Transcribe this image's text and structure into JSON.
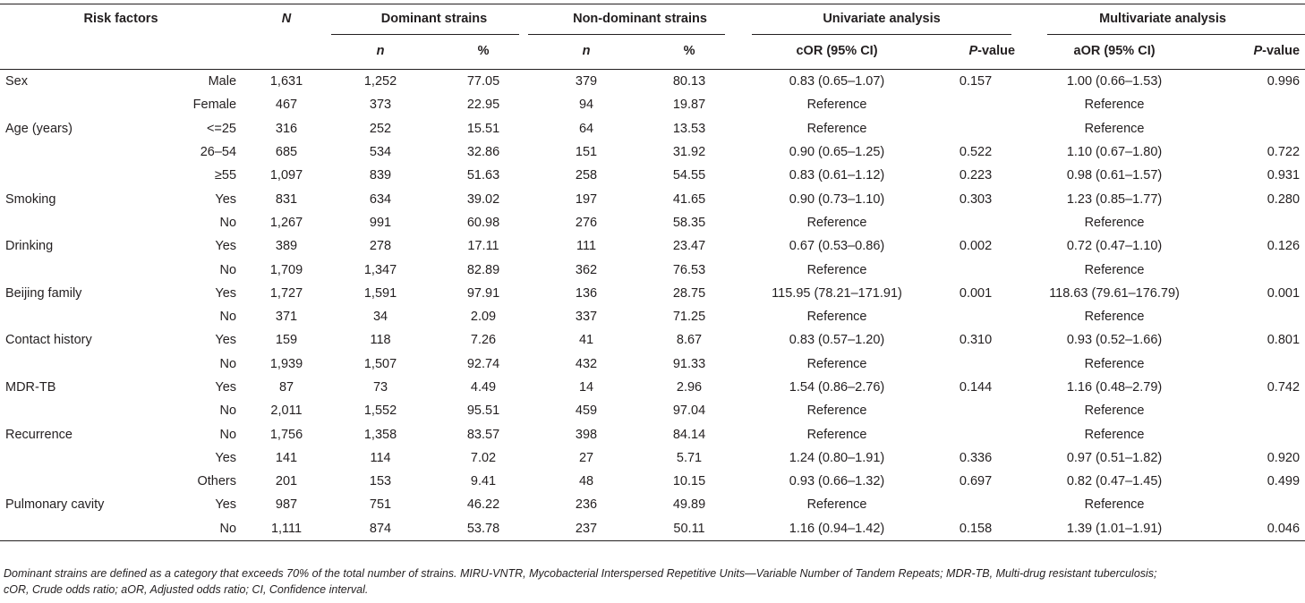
{
  "table": {
    "headers": {
      "risk_factors": "Risk factors",
      "N": "N",
      "dominant_strains": "Dominant strains",
      "non_dominant_strains": "Non-dominant strains",
      "univariate_analysis": "Univariate analysis",
      "multivariate_analysis": "Multivariate analysis",
      "n": "n",
      "percent": "%",
      "cor": "cOR (95% CI)",
      "aor": "aOR (95% CI)",
      "p_italic": "P",
      "p_suffix": "-value"
    },
    "rows": [
      {
        "factor": "Sex",
        "level": "Male",
        "N": "1,631",
        "dom_n": "1,252",
        "dom_pct": "77.05",
        "non_n": "379",
        "non_pct": "80.13",
        "cor": "0.83 (0.65–1.07)",
        "cor_p": "0.157",
        "aor": "1.00 (0.66–1.53)",
        "aor_p": "0.996"
      },
      {
        "factor": "",
        "level": "Female",
        "N": "467",
        "dom_n": "373",
        "dom_pct": "22.95",
        "non_n": "94",
        "non_pct": "19.87",
        "cor": "Reference",
        "cor_p": "",
        "aor": "Reference",
        "aor_p": ""
      },
      {
        "factor": "Age (years)",
        "level": "<=25",
        "N": "316",
        "dom_n": "252",
        "dom_pct": "15.51",
        "non_n": "64",
        "non_pct": "13.53",
        "cor": "Reference",
        "cor_p": "",
        "aor": "Reference",
        "aor_p": ""
      },
      {
        "factor": "",
        "level": "26–54",
        "N": "685",
        "dom_n": "534",
        "dom_pct": "32.86",
        "non_n": "151",
        "non_pct": "31.92",
        "cor": "0.90 (0.65–1.25)",
        "cor_p": "0.522",
        "aor": "1.10 (0.67–1.80)",
        "aor_p": "0.722"
      },
      {
        "factor": "",
        "level": "≥55",
        "N": "1,097",
        "dom_n": "839",
        "dom_pct": "51.63",
        "non_n": "258",
        "non_pct": "54.55",
        "cor": "0.83 (0.61–1.12)",
        "cor_p": "0.223",
        "aor": "0.98 (0.61–1.57)",
        "aor_p": "0.931"
      },
      {
        "factor": "Smoking",
        "level": "Yes",
        "N": "831",
        "dom_n": "634",
        "dom_pct": "39.02",
        "non_n": "197",
        "non_pct": "41.65",
        "cor": "0.90 (0.73–1.10)",
        "cor_p": "0.303",
        "aor": "1.23 (0.85–1.77)",
        "aor_p": "0.280"
      },
      {
        "factor": "",
        "level": "No",
        "N": "1,267",
        "dom_n": "991",
        "dom_pct": "60.98",
        "non_n": "276",
        "non_pct": "58.35",
        "cor": "Reference",
        "cor_p": "",
        "aor": "Reference",
        "aor_p": ""
      },
      {
        "factor": "Drinking",
        "level": "Yes",
        "N": "389",
        "dom_n": "278",
        "dom_pct": "17.11",
        "non_n": "111",
        "non_pct": "23.47",
        "cor": "0.67 (0.53–0.86)",
        "cor_p": "0.002",
        "aor": "0.72 (0.47–1.10)",
        "aor_p": "0.126"
      },
      {
        "factor": "",
        "level": "No",
        "N": "1,709",
        "dom_n": "1,347",
        "dom_pct": "82.89",
        "non_n": "362",
        "non_pct": "76.53",
        "cor": "Reference",
        "cor_p": "",
        "aor": "Reference",
        "aor_p": ""
      },
      {
        "factor": "Beijing family",
        "level": "Yes",
        "N": "1,727",
        "dom_n": "1,591",
        "dom_pct": "97.91",
        "non_n": "136",
        "non_pct": "28.75",
        "cor": "115.95 (78.21–171.91)",
        "cor_p": "0.001",
        "aor": "118.63 (79.61–176.79)",
        "aor_p": "0.001"
      },
      {
        "factor": "",
        "level": "No",
        "N": "371",
        "dom_n": "34",
        "dom_pct": "2.09",
        "non_n": "337",
        "non_pct": "71.25",
        "cor": "Reference",
        "cor_p": "",
        "aor": "Reference",
        "aor_p": ""
      },
      {
        "factor": "Contact history",
        "level": "Yes",
        "N": "159",
        "dom_n": "118",
        "dom_pct": "7.26",
        "non_n": "41",
        "non_pct": "8.67",
        "cor": "0.83 (0.57–1.20)",
        "cor_p": "0.310",
        "aor": "0.93 (0.52–1.66)",
        "aor_p": "0.801"
      },
      {
        "factor": "",
        "level": "No",
        "N": "1,939",
        "dom_n": "1,507",
        "dom_pct": "92.74",
        "non_n": "432",
        "non_pct": "91.33",
        "cor": "Reference",
        "cor_p": "",
        "aor": "Reference",
        "aor_p": ""
      },
      {
        "factor": "MDR-TB",
        "level": "Yes",
        "N": "87",
        "dom_n": "73",
        "dom_pct": "4.49",
        "non_n": "14",
        "non_pct": "2.96",
        "cor": "1.54 (0.86–2.76)",
        "cor_p": "0.144",
        "aor": "1.16 (0.48–2.79)",
        "aor_p": "0.742"
      },
      {
        "factor": "",
        "level": "No",
        "N": "2,011",
        "dom_n": "1,552",
        "dom_pct": "95.51",
        "non_n": "459",
        "non_pct": "97.04",
        "cor": "Reference",
        "cor_p": "",
        "aor": "Reference",
        "aor_p": ""
      },
      {
        "factor": "Recurrence",
        "level": "No",
        "N": "1,756",
        "dom_n": "1,358",
        "dom_pct": "83.57",
        "non_n": "398",
        "non_pct": "84.14",
        "cor": "Reference",
        "cor_p": "",
        "aor": "Reference",
        "aor_p": ""
      },
      {
        "factor": "",
        "level": "Yes",
        "N": "141",
        "dom_n": "114",
        "dom_pct": "7.02",
        "non_n": "27",
        "non_pct": "5.71",
        "cor": "1.24 (0.80–1.91)",
        "cor_p": "0.336",
        "aor": "0.97 (0.51–1.82)",
        "aor_p": "0.920"
      },
      {
        "factor": "",
        "level": "Others",
        "N": "201",
        "dom_n": "153",
        "dom_pct": "9.41",
        "non_n": "48",
        "non_pct": "10.15",
        "cor": "0.93 (0.66–1.32)",
        "cor_p": "0.697",
        "aor": "0.82 (0.47–1.45)",
        "aor_p": "0.499"
      },
      {
        "factor": "Pulmonary cavity",
        "level": "Yes",
        "N": "987",
        "dom_n": "751",
        "dom_pct": "46.22",
        "non_n": "236",
        "non_pct": "49.89",
        "cor": "Reference",
        "cor_p": "",
        "aor": "Reference",
        "aor_p": ""
      },
      {
        "factor": "",
        "level": "No",
        "N": "1,111",
        "dom_n": "874",
        "dom_pct": "53.78",
        "non_n": "237",
        "non_pct": "50.11",
        "cor": "1.16 (0.94–1.42)",
        "cor_p": "0.158",
        "aor": "1.39 (1.01–1.91)",
        "aor_p": "0.046"
      }
    ],
    "footnote_lines": [
      "Dominant strains are defined as a category that exceeds 70% of the total number of strains. MIRU-VNTR, Mycobacterial Interspersed Repetitive Units—Variable Number of Tandem Repeats; MDR-TB, Multi-drug resistant tuberculosis;",
      "cOR, Crude odds ratio; aOR, Adjusted odds ratio; CI, Confidence interval."
    ]
  }
}
